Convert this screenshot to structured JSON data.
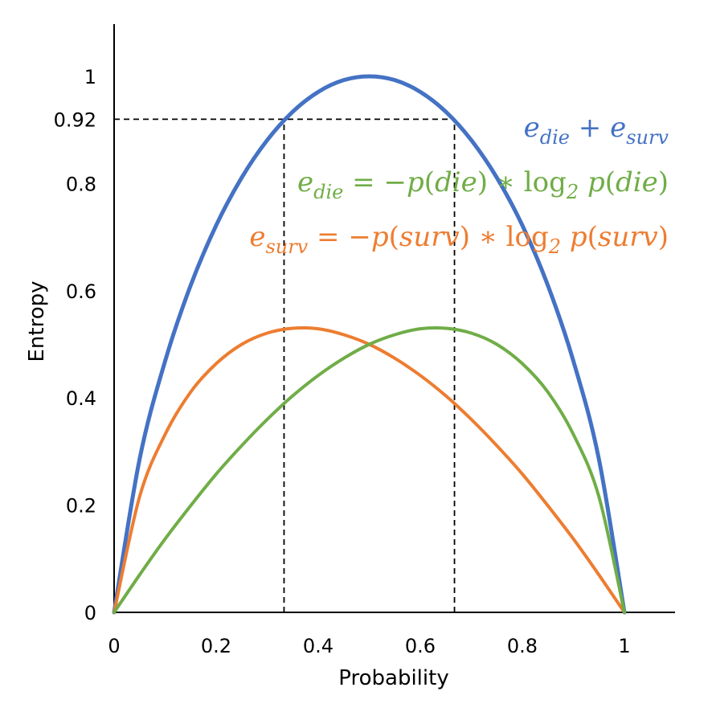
{
  "chart_data": {
    "type": "line",
    "title": "",
    "xlabel": "Probability",
    "ylabel": "Entropy",
    "xlim": [
      0,
      1.1
    ],
    "ylim": [
      0,
      1.1
    ],
    "x_ticks": [
      0,
      0.2,
      0.4,
      0.6,
      0.8,
      1
    ],
    "x_tick_labels": [
      "0",
      "0.2",
      "0.4",
      "0.6",
      "0.8",
      "1"
    ],
    "y_ticks": [
      0,
      0.2,
      0.4,
      0.6,
      0.8,
      0.92,
      1
    ],
    "y_tick_labels": [
      "0",
      "0.2",
      "0.4",
      "0.6",
      "0.8",
      "0.92",
      "1"
    ],
    "grid": false,
    "legend_placement": "top-right",
    "x": [
      0,
      0.05,
      0.1,
      0.15,
      0.2,
      0.25,
      0.3,
      0.35,
      0.4,
      0.45,
      0.5,
      0.55,
      0.6,
      0.65,
      0.7,
      0.75,
      0.8,
      0.85,
      0.9,
      0.95,
      1
    ],
    "series": [
      {
        "name": "e_die + e_surv",
        "color": "#4472c4",
        "values": [
          0,
          0.286,
          0.469,
          0.61,
          0.722,
          0.811,
          0.881,
          0.934,
          0.971,
          0.993,
          1.0,
          0.993,
          0.971,
          0.934,
          0.881,
          0.811,
          0.722,
          0.61,
          0.469,
          0.286,
          0
        ]
      },
      {
        "name": "e_surv = −p(surv) ∗ log2 p(surv)",
        "color": "#ed7d31",
        "values": [
          0,
          0.216,
          0.332,
          0.411,
          0.464,
          0.5,
          0.521,
          0.53,
          0.529,
          0.518,
          0.5,
          0.474,
          0.442,
          0.404,
          0.36,
          0.311,
          0.258,
          0.199,
          0.137,
          0.07,
          0
        ]
      },
      {
        "name": "e_die = −p(die) ∗ log2 p(die)",
        "color": "#70ad47",
        "values": [
          0,
          0.07,
          0.137,
          0.199,
          0.258,
          0.311,
          0.36,
          0.404,
          0.442,
          0.474,
          0.5,
          0.518,
          0.529,
          0.53,
          0.521,
          0.5,
          0.464,
          0.411,
          0.332,
          0.216,
          0
        ]
      }
    ],
    "reference_lines": [
      {
        "y": 0.92,
        "x_start": 0,
        "x_end": 0.667
      },
      {
        "x": 0.333,
        "y_start": 0,
        "y_end": 0.92
      },
      {
        "x": 0.667,
        "y_start": 0,
        "y_end": 0.92
      }
    ],
    "legend": [
      {
        "color": "#4472c4",
        "parts": [
          [
            "i",
            "e"
          ],
          [
            "s",
            "die"
          ],
          [
            "u",
            " + "
          ],
          [
            "i",
            "e"
          ],
          [
            "s",
            "surv"
          ]
        ]
      },
      {
        "color": "#70ad47",
        "parts": [
          [
            "i",
            "e"
          ],
          [
            "s",
            "die"
          ],
          [
            "u",
            " = −"
          ],
          [
            "i",
            "p"
          ],
          [
            "u",
            "("
          ],
          [
            "i",
            "die"
          ],
          [
            "u",
            ") ∗ log"
          ],
          [
            "s",
            "2"
          ],
          [
            "u",
            " "
          ],
          [
            "i",
            "p"
          ],
          [
            "u",
            "("
          ],
          [
            "i",
            "die"
          ],
          [
            "u",
            ")"
          ]
        ]
      },
      {
        "color": "#ed7d31",
        "parts": [
          [
            "i",
            "e"
          ],
          [
            "s",
            "surv"
          ],
          [
            "u",
            " = −"
          ],
          [
            "i",
            "p"
          ],
          [
            "u",
            "("
          ],
          [
            "i",
            "surv"
          ],
          [
            "u",
            ") ∗ log"
          ],
          [
            "s",
            "2"
          ],
          [
            "u",
            " "
          ],
          [
            "i",
            "p"
          ],
          [
            "u",
            "("
          ],
          [
            "i",
            "surv"
          ],
          [
            "u",
            ")"
          ]
        ]
      }
    ]
  }
}
